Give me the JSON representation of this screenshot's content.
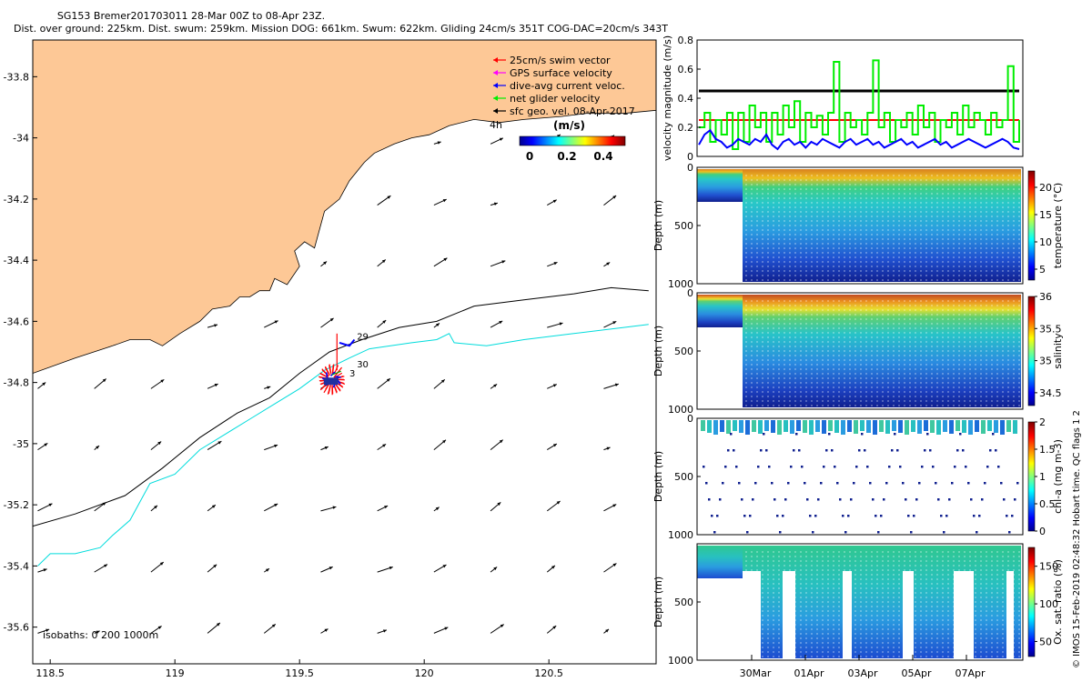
{
  "header": {
    "title": "SG153 Bremer201703011 28-Mar 00Z to 08-Apr 23Z.",
    "subtitle": "Dist. over ground: 225km. Dist. swum: 259km. Mission DOG: 661km. Swum: 622km. Gliding 24cm/s 351T COG-DAC=20cm/s 343T"
  },
  "credit": "© IMOS 15-Feb-2019 02:48:32 Hobart time. QC flags 1  2",
  "colors": {
    "land": "#fdc896",
    "shelf_isobath": "#00e0e0",
    "swim": "#ff0000",
    "gps": "#ff00ff",
    "dac": "#0000ff",
    "net": "#00ee00"
  },
  "chart_data": [
    {
      "type": "map",
      "name": "glider track and velocity map",
      "xlim": [
        118.43,
        120.93
      ],
      "ylim": [
        -35.72,
        -33.68
      ],
      "x_ticks": [
        118.5,
        119,
        119.5,
        120,
        120.5
      ],
      "x_tick_labels": [
        "118.5",
        "119",
        "119.5",
        "120",
        "120.5"
      ],
      "y_ticks": [
        -33.8,
        -34,
        -34.2,
        -34.4,
        -34.6,
        -34.8,
        -35,
        -35.2,
        -35.4,
        -35.6
      ],
      "y_tick_labels": [
        "-33.8",
        "-34",
        "-34.2",
        "-34.4",
        "-34.6",
        "-34.8",
        "-35",
        "-35.2",
        "-35.4",
        "-35.6"
      ],
      "legend": [
        {
          "label": "25cm/s swim vector",
          "color": "#ff0000"
        },
        {
          "label": "GPS surface velocity",
          "color": "#ff00ff"
        },
        {
          "label": "dive-avg current veloc.",
          "color": "#0000ff"
        },
        {
          "label": "net glider velocity",
          "color": "#00ee00"
        },
        {
          "label": "sfc geo. vel. 08-Apr-2017",
          "color": "#000000"
        }
      ],
      "legend_extra": "4h",
      "colorbar": {
        "title": "(m/s)",
        "ticks": [
          "0",
          "0.2",
          "0.4"
        ],
        "range": [
          0,
          0.55
        ]
      },
      "isobaths_label": "isobaths: 0   200   1000m",
      "day_labels": [
        "29",
        "30",
        "3"
      ],
      "coastline": [
        [
          118.43,
          -34.77
        ],
        [
          118.6,
          -34.72
        ],
        [
          118.75,
          -34.68
        ],
        [
          118.82,
          -34.66
        ],
        [
          118.9,
          -34.66
        ],
        [
          118.95,
          -34.68
        ],
        [
          119.02,
          -34.64
        ],
        [
          119.1,
          -34.6
        ],
        [
          119.15,
          -34.56
        ],
        [
          119.22,
          -34.55
        ],
        [
          119.26,
          -34.52
        ],
        [
          119.3,
          -34.52
        ],
        [
          119.34,
          -34.5
        ],
        [
          119.38,
          -34.5
        ],
        [
          119.4,
          -34.46
        ],
        [
          119.45,
          -34.48
        ],
        [
          119.5,
          -34.42
        ],
        [
          119.48,
          -34.37
        ],
        [
          119.52,
          -34.34
        ],
        [
          119.56,
          -34.36
        ],
        [
          119.58,
          -34.3
        ],
        [
          119.6,
          -34.24
        ],
        [
          119.66,
          -34.2
        ],
        [
          119.7,
          -34.14
        ],
        [
          119.76,
          -34.08
        ],
        [
          119.8,
          -34.05
        ],
        [
          119.88,
          -34.02
        ],
        [
          119.95,
          -34.0
        ],
        [
          120.02,
          -33.99
        ],
        [
          120.1,
          -33.96
        ],
        [
          120.2,
          -33.94
        ],
        [
          120.3,
          -33.95
        ],
        [
          120.4,
          -33.94
        ],
        [
          120.55,
          -33.93
        ],
        [
          120.65,
          -33.92
        ],
        [
          120.8,
          -33.92
        ],
        [
          120.93,
          -33.91
        ]
      ],
      "isobath_200": [
        [
          118.43,
          -35.27
        ],
        [
          118.6,
          -35.23
        ],
        [
          118.8,
          -35.17
        ],
        [
          118.95,
          -35.08
        ],
        [
          119.1,
          -34.98
        ],
        [
          119.25,
          -34.9
        ],
        [
          119.38,
          -34.85
        ],
        [
          119.5,
          -34.77
        ],
        [
          119.62,
          -34.7
        ],
        [
          119.75,
          -34.66
        ],
        [
          119.9,
          -34.62
        ],
        [
          120.05,
          -34.6
        ],
        [
          120.2,
          -34.55
        ],
        [
          120.4,
          -34.53
        ],
        [
          120.6,
          -34.51
        ],
        [
          120.75,
          -34.49
        ],
        [
          120.9,
          -34.5
        ]
      ],
      "isobath_1000": [
        [
          118.45,
          -35.4
        ],
        [
          118.5,
          -35.36
        ],
        [
          118.6,
          -35.36
        ],
        [
          118.7,
          -35.34
        ],
        [
          118.75,
          -35.3
        ],
        [
          118.82,
          -35.25
        ],
        [
          118.9,
          -35.13
        ],
        [
          119.0,
          -35.1
        ],
        [
          119.1,
          -35.02
        ],
        [
          119.2,
          -34.97
        ],
        [
          119.3,
          -34.92
        ],
        [
          119.4,
          -34.87
        ],
        [
          119.5,
          -34.82
        ],
        [
          119.6,
          -34.76
        ],
        [
          119.7,
          -34.72
        ],
        [
          119.78,
          -34.69
        ],
        [
          119.95,
          -34.67
        ],
        [
          120.05,
          -34.66
        ],
        [
          120.1,
          -34.64
        ],
        [
          120.12,
          -34.67
        ],
        [
          120.25,
          -34.68
        ],
        [
          120.4,
          -34.66
        ],
        [
          120.6,
          -34.64
        ],
        [
          120.8,
          -34.62
        ],
        [
          120.9,
          -34.61
        ]
      ]
    },
    {
      "type": "line",
      "name": "velocity magnitude",
      "ylabel": "velocity magnitude (m/s)",
      "ylim": [
        0,
        0.8
      ],
      "y_ticks": [
        "0",
        "0.2",
        "0.4",
        "0.6",
        "0.8"
      ],
      "series": [
        {
          "name": "sfc geo. vel.",
          "color": "#000000",
          "values": [
            0.45,
            0.45
          ]
        },
        {
          "name": "swim speed",
          "color": "#ff0000",
          "values": [
            0.25,
            0.25
          ]
        },
        {
          "name": "net glider velocity",
          "color": "#00ee00",
          "values": [
            0.2,
            0.3,
            0.1,
            0.25,
            0.15,
            0.3,
            0.05,
            0.3,
            0.1,
            0.35,
            0.2,
            0.3,
            0.1,
            0.3,
            0.15,
            0.35,
            0.2,
            0.38,
            0.1,
            0.3,
            0.2,
            0.28,
            0.15,
            0.3,
            0.65,
            0.1,
            0.3,
            0.2,
            0.25,
            0.15,
            0.3,
            0.66,
            0.2,
            0.3,
            0.1,
            0.25,
            0.2,
            0.3,
            0.15,
            0.35,
            0.2,
            0.3,
            0.1,
            0.25,
            0.2,
            0.3,
            0.15,
            0.35,
            0.2,
            0.3,
            0.25,
            0.15,
            0.3,
            0.2,
            0.25,
            0.62,
            0.1,
            0.25
          ]
        },
        {
          "name": "dive-avg current",
          "color": "#0000ff",
          "values": [
            0.08,
            0.15,
            0.18,
            0.12,
            0.1,
            0.06,
            0.08,
            0.12,
            0.1,
            0.08,
            0.12,
            0.1,
            0.15,
            0.08,
            0.05,
            0.1,
            0.12,
            0.08,
            0.1,
            0.06,
            0.1,
            0.08,
            0.12,
            0.1,
            0.08,
            0.06,
            0.1,
            0.12,
            0.08,
            0.1,
            0.12,
            0.08,
            0.1,
            0.06,
            0.08,
            0.1,
            0.12,
            0.08,
            0.1,
            0.06,
            0.08,
            0.1,
            0.12,
            0.08,
            0.1,
            0.06,
            0.08,
            0.1,
            0.12,
            0.1,
            0.08,
            0.06,
            0.08,
            0.1,
            0.12,
            0.1,
            0.06,
            0.05
          ]
        }
      ]
    },
    {
      "type": "section",
      "name": "temperature",
      "ylabel": "Depth (m)",
      "clabel": "temperature (°C)",
      "ylim": [
        1000,
        0
      ],
      "y_ticks": [
        "0",
        "500",
        "1000"
      ],
      "c_ticks": [
        "5",
        "10",
        "15",
        "20"
      ],
      "crange": [
        3,
        23
      ]
    },
    {
      "type": "section",
      "name": "salinity",
      "ylabel": "Depth (m)",
      "clabel": "salinity",
      "ylim": [
        1000,
        0
      ],
      "y_ticks": [
        "0",
        "500",
        "1000"
      ],
      "c_ticks": [
        "34.5",
        "35",
        "35.5",
        "36"
      ],
      "crange": [
        34.3,
        36.0
      ]
    },
    {
      "type": "section",
      "name": "chlorophyll",
      "ylabel": "Depth (m)",
      "clabel": "chl-a (mg m-3)",
      "ylim": [
        1000,
        0
      ],
      "y_ticks": [
        "0",
        "500",
        "1000"
      ],
      "c_ticks": [
        "0",
        "0.5",
        "1",
        "1.5",
        "2"
      ],
      "crange": [
        0,
        2
      ]
    },
    {
      "type": "section",
      "name": "oxygen",
      "ylabel": "Depth (m)",
      "clabel": "Ox. sat. ratio (%)",
      "ylim": [
        1000,
        0
      ],
      "y_ticks": [
        "500",
        "1000"
      ],
      "c_ticks": [
        "50",
        "100",
        "150"
      ],
      "crange": [
        30,
        175
      ],
      "x_tick_labels": [
        "30Mar",
        "01Apr",
        "03Apr",
        "05Apr",
        "07Apr"
      ]
    }
  ]
}
